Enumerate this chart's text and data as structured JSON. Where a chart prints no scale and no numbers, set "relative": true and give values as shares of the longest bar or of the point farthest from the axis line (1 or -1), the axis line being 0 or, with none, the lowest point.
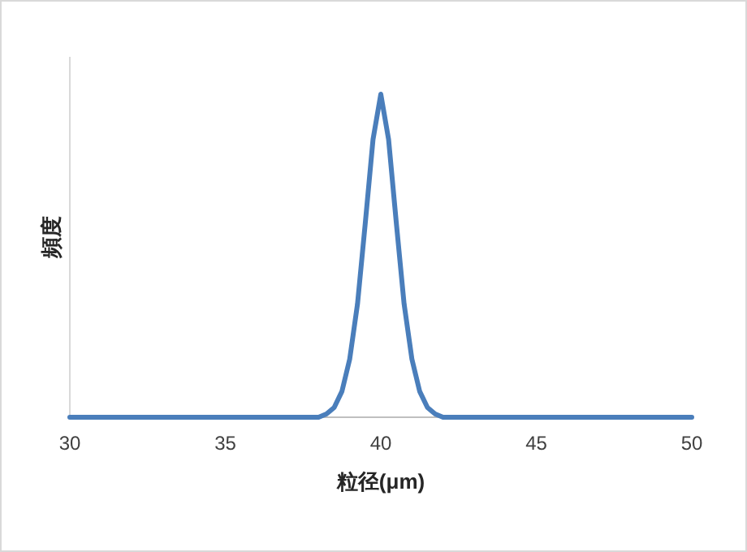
{
  "chart_data": {
    "type": "line",
    "xlabel": "粒径(μm)",
    "ylabel": "頻度",
    "relative": true,
    "xlim": [
      30,
      50
    ],
    "xticks": [
      30,
      35,
      40,
      45,
      50
    ],
    "grid": false,
    "marker": "none",
    "line_style": "solid",
    "series": [
      {
        "color": "#4a7ebb",
        "x": [
          30,
          35,
          37,
          38,
          38.25,
          38.5,
          38.75,
          39,
          39.25,
          39.5,
          39.75,
          40,
          40.25,
          40.5,
          40.75,
          41,
          41.25,
          41.5,
          41.75,
          42,
          43,
          45,
          50
        ],
        "values": [
          0,
          0,
          0,
          0,
          0.01,
          0.03,
          0.08,
          0.18,
          0.35,
          0.6,
          0.86,
          1,
          0.86,
          0.6,
          0.35,
          0.18,
          0.08,
          0.03,
          0.01,
          0,
          0,
          0,
          0
        ]
      }
    ]
  }
}
